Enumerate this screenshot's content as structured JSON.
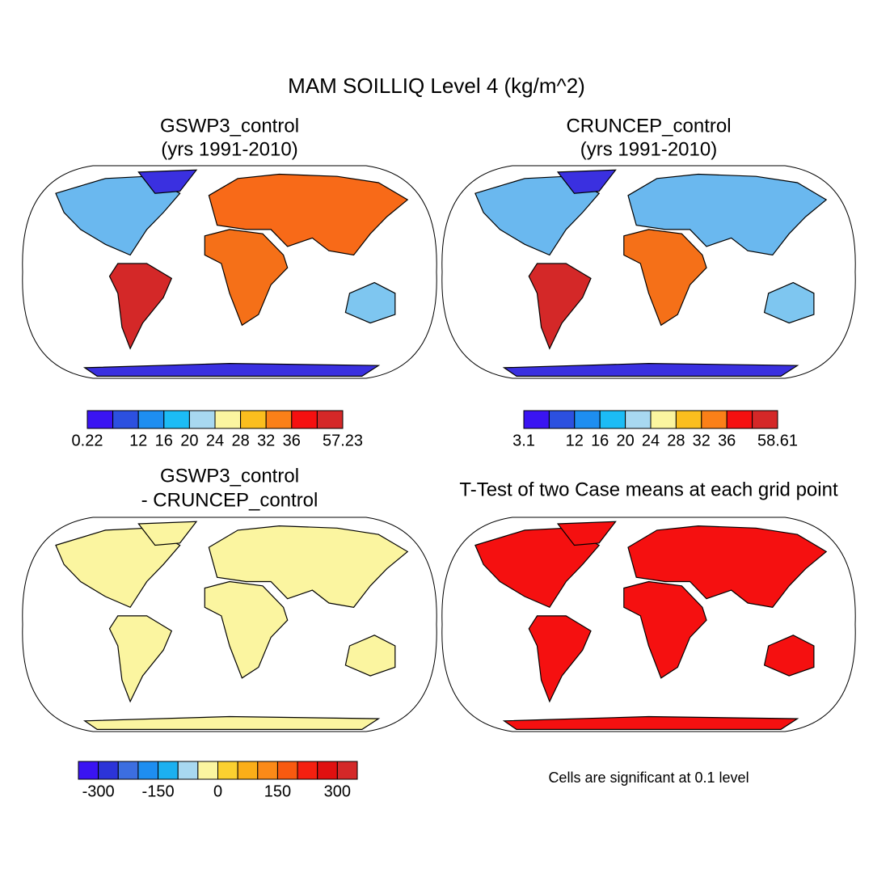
{
  "title": "MAM SOILLIQ Level 4 (kg/m^2)",
  "panels": [
    {
      "title": [
        "GSWP3_control",
        "(yrs 1991-2010)"
      ],
      "colorbar": {
        "colors": [
          "#3a14f2",
          "#2c50e0",
          "#1e8ef0",
          "#1cbcf5",
          "#a8d8f0",
          "#fbf5a0",
          "#fbbe1e",
          "#fb8018",
          "#f51010",
          "#d42828"
        ],
        "labels": [
          "0.22",
          null,
          "12",
          "16",
          "20",
          "24",
          "28",
          "32",
          "36",
          null,
          "57.23"
        ]
      }
    },
    {
      "title": [
        "CRUNCEP_control",
        "(yrs 1991-2010)"
      ],
      "colorbar": {
        "colors": [
          "#3a14f2",
          "#2c50e0",
          "#1e8ef0",
          "#1cbcf5",
          "#a8d8f0",
          "#fbf5a0",
          "#fbbe1e",
          "#fb8018",
          "#f51010",
          "#d42828"
        ],
        "labels": [
          "3.1",
          null,
          "12",
          "16",
          "20",
          "24",
          "28",
          "32",
          "36",
          null,
          "58.61"
        ]
      }
    },
    {
      "title": [
        "GSWP3_control",
        "- CRUNCEP_control"
      ],
      "colorbar": {
        "colors": [
          "#3a14f2",
          "#2c34d8",
          "#3c6ee0",
          "#1e8ef0",
          "#1cb0f0",
          "#a8d8f0",
          "#fbf5a0",
          "#fbd030",
          "#fbae18",
          "#fb8a18",
          "#f85a10",
          "#f52010",
          "#e01010",
          "#d42828"
        ],
        "labels": [
          null,
          "-300",
          null,
          null,
          "-150",
          null,
          null,
          "0",
          null,
          null,
          "150",
          null,
          null,
          "300",
          null
        ]
      }
    },
    {
      "title": [
        "T-Test of two Case means at each grid point"
      ],
      "note": "Cells are significant at 0.1 level"
    }
  ]
}
